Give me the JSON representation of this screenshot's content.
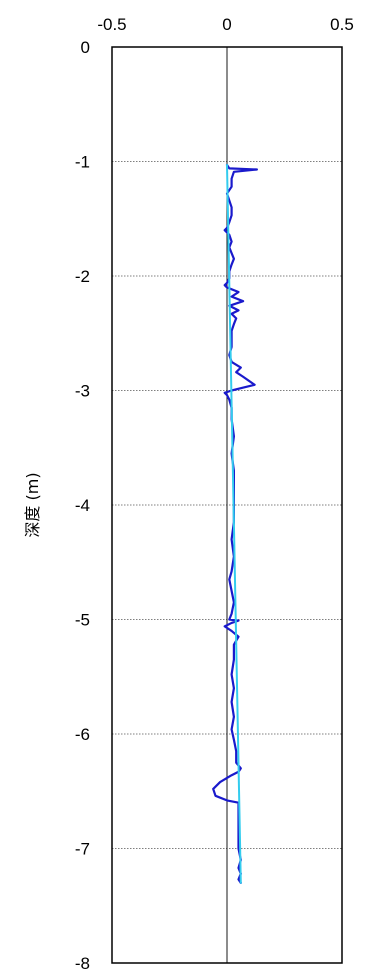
{
  "chart_data": {
    "type": "line",
    "title": "",
    "xlabel": "",
    "ylabel": "深度 (m)",
    "x_axis_position": "top",
    "xlim": [
      -0.5,
      0.5
    ],
    "ylim": [
      -8,
      0
    ],
    "x_ticks": [
      -0.5,
      0,
      0.5
    ],
    "x_tick_labels": [
      "-0.5",
      "0",
      "0.5"
    ],
    "y_ticks": [
      0,
      -1,
      -2,
      -3,
      -4,
      -5,
      -6,
      -7,
      -8
    ],
    "y_tick_labels": [
      "0",
      "-1",
      "-2",
      "-3",
      "-4",
      "-5",
      "-6",
      "-7",
      "-8"
    ],
    "grid": "horizontal dotted lines at y ticks",
    "zero_reference_line": true,
    "colors": {
      "measured": "#1a1acc",
      "fit": "#33ccee",
      "frame": "#000000",
      "grid": "#555555"
    },
    "series": [
      {
        "color": "#1a1acc",
        "points": [
          [
            0.0,
            -1.03
          ],
          [
            0.01,
            -1.06
          ],
          [
            0.13,
            -1.07
          ],
          [
            0.03,
            -1.09
          ],
          [
            0.02,
            -1.15
          ],
          [
            0.02,
            -1.22
          ],
          [
            0.0,
            -1.28
          ],
          [
            0.01,
            -1.34
          ],
          [
            0.02,
            -1.4
          ],
          [
            0.02,
            -1.47
          ],
          [
            0.01,
            -1.53
          ],
          [
            0.0,
            -1.58
          ],
          [
            -0.01,
            -1.6
          ],
          [
            0.01,
            -1.64
          ],
          [
            0.02,
            -1.7
          ],
          [
            0.01,
            -1.75
          ],
          [
            0.02,
            -1.8
          ],
          [
            0.03,
            -1.85
          ],
          [
            0.02,
            -1.9
          ],
          [
            0.01,
            -1.96
          ],
          [
            0.01,
            -2.02
          ],
          [
            0.0,
            -2.06
          ],
          [
            -0.01,
            -2.08
          ],
          [
            0.0,
            -2.1
          ],
          [
            0.05,
            -2.14
          ],
          [
            0.02,
            -2.18
          ],
          [
            0.07,
            -2.22
          ],
          [
            0.01,
            -2.26
          ],
          [
            0.05,
            -2.3
          ],
          [
            0.02,
            -2.33
          ],
          [
            0.04,
            -2.37
          ],
          [
            0.03,
            -2.42
          ],
          [
            0.02,
            -2.48
          ],
          [
            0.02,
            -2.55
          ],
          [
            0.02,
            -2.62
          ],
          [
            0.01,
            -2.69
          ],
          [
            0.02,
            -2.75
          ],
          [
            0.06,
            -2.8
          ],
          [
            0.04,
            -2.84
          ],
          [
            0.07,
            -2.88
          ],
          [
            0.12,
            -2.95
          ],
          [
            0.06,
            -2.98
          ],
          [
            0.02,
            -3.0
          ],
          [
            -0.01,
            -3.02
          ],
          [
            0.0,
            -3.04
          ],
          [
            0.01,
            -3.08
          ],
          [
            0.02,
            -3.15
          ],
          [
            0.02,
            -3.25
          ],
          [
            0.03,
            -3.4
          ],
          [
            0.02,
            -3.55
          ],
          [
            0.03,
            -3.7
          ],
          [
            0.03,
            -3.85
          ],
          [
            0.03,
            -4.0
          ],
          [
            0.03,
            -4.15
          ],
          [
            0.02,
            -4.3
          ],
          [
            0.03,
            -4.45
          ],
          [
            0.02,
            -4.58
          ],
          [
            0.01,
            -4.65
          ],
          [
            0.02,
            -4.75
          ],
          [
            0.03,
            -4.85
          ],
          [
            0.02,
            -4.95
          ],
          [
            0.01,
            -5.0
          ],
          [
            0.05,
            -5.01
          ],
          [
            0.02,
            -5.03
          ],
          [
            -0.01,
            -5.06
          ],
          [
            0.02,
            -5.1
          ],
          [
            0.05,
            -5.15
          ],
          [
            0.03,
            -5.22
          ],
          [
            0.03,
            -5.35
          ],
          [
            0.02,
            -5.48
          ],
          [
            0.03,
            -5.6
          ],
          [
            0.02,
            -5.72
          ],
          [
            0.03,
            -5.85
          ],
          [
            0.02,
            -5.96
          ],
          [
            0.03,
            -6.05
          ],
          [
            0.04,
            -6.15
          ],
          [
            0.04,
            -6.25
          ],
          [
            0.06,
            -6.3
          ],
          [
            0.05,
            -6.33
          ],
          [
            0.02,
            -6.36
          ],
          [
            -0.03,
            -6.42
          ],
          [
            -0.06,
            -6.48
          ],
          [
            -0.05,
            -6.54
          ],
          [
            0.0,
            -6.58
          ],
          [
            0.05,
            -6.6
          ],
          [
            0.05,
            -6.7
          ],
          [
            0.05,
            -6.8
          ],
          [
            0.05,
            -6.9
          ],
          [
            0.05,
            -7.0
          ],
          [
            0.06,
            -7.1
          ],
          [
            0.05,
            -7.17
          ],
          [
            0.06,
            -7.22
          ],
          [
            0.05,
            -7.27
          ],
          [
            0.06,
            -7.3
          ]
        ]
      },
      {
        "color": "#33ccee",
        "points": [
          [
            0.0,
            -1.03
          ],
          [
            0.06,
            -7.3
          ]
        ]
      }
    ]
  }
}
